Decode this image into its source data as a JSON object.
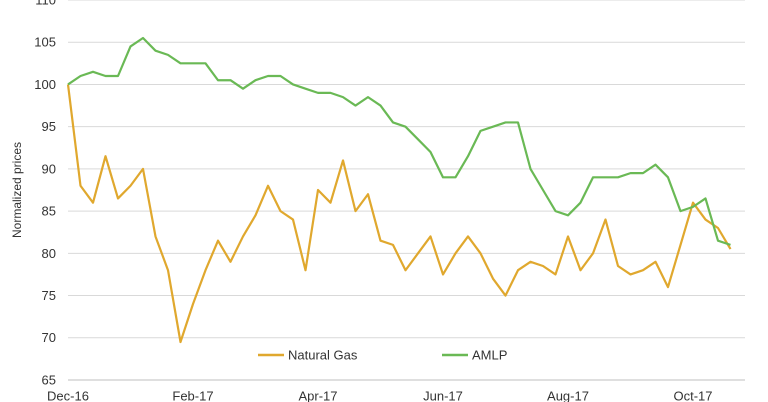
{
  "chart_data": {
    "type": "line",
    "y_label": "Normalized prices",
    "categories": [
      "Dec-16",
      null,
      null,
      null,
      null,
      null,
      null,
      null,
      null,
      null,
      "Feb-17",
      null,
      null,
      null,
      null,
      null,
      null,
      null,
      null,
      null,
      "Apr-17",
      null,
      null,
      null,
      null,
      null,
      null,
      null,
      null,
      null,
      "Jun-17",
      null,
      null,
      null,
      null,
      null,
      null,
      null,
      null,
      null,
      "Aug-17",
      null,
      null,
      null,
      null,
      null,
      null,
      null,
      null,
      null,
      "Oct-17",
      null,
      null,
      null
    ],
    "series": [
      {
        "name": "Natural Gas",
        "color": "#e0a82e",
        "values": [
          100,
          88,
          86,
          91.5,
          86.5,
          88,
          90,
          82,
          78,
          69.5,
          74,
          78,
          81.5,
          79,
          82,
          84.5,
          88,
          85,
          84,
          78,
          87.5,
          86,
          91,
          85,
          87,
          81.5,
          81,
          78,
          80,
          82,
          77.5,
          80,
          82,
          80,
          77,
          75,
          78,
          79,
          78.5,
          77.5,
          82,
          78,
          80,
          84,
          78.5,
          77.5,
          78,
          79,
          76,
          81,
          86,
          84,
          83,
          80.5
        ]
      },
      {
        "name": "AMLP",
        "color": "#6ab955",
        "values": [
          100,
          101,
          101.5,
          101,
          101,
          104.5,
          105.5,
          104,
          103.5,
          102.5,
          102.5,
          102.5,
          100.5,
          100.5,
          99.5,
          100.5,
          101,
          101,
          100,
          99.5,
          99,
          99,
          98.5,
          97.5,
          98.5,
          97.5,
          95.5,
          95,
          93.5,
          92,
          89,
          89,
          91.5,
          94.5,
          95,
          95.5,
          95.5,
          90,
          87.5,
          85,
          84.5,
          86,
          89,
          89,
          89,
          89.5,
          89.5,
          90.5,
          89,
          85,
          85.5,
          86.5,
          81.5,
          81
        ]
      }
    ],
    "ylim": [
      65,
      110
    ],
    "yticks": [
      65,
      70,
      75,
      80,
      85,
      90,
      95,
      100,
      105,
      110
    ],
    "grid": true,
    "legend": "bottom"
  }
}
